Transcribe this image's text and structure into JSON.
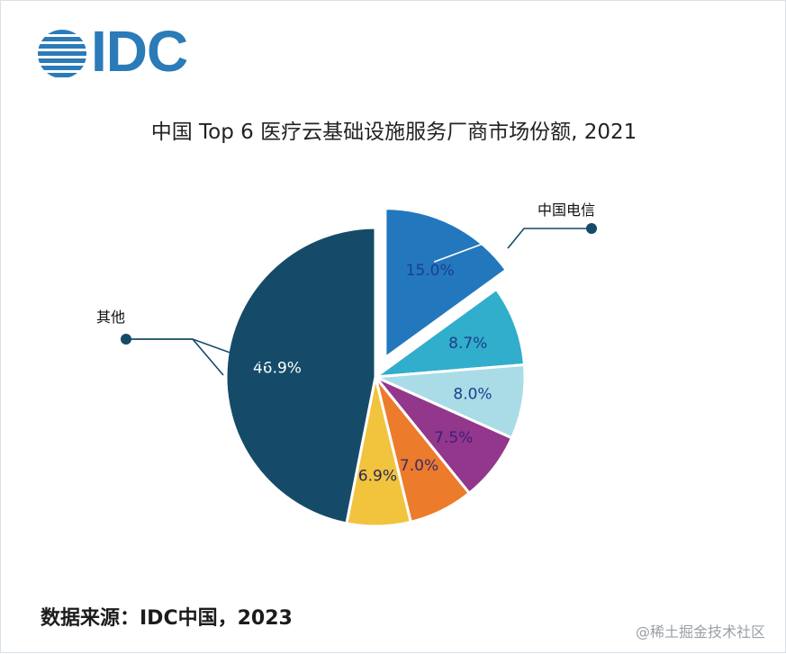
{
  "logo": {
    "text": "IDC",
    "color": "#2b7bb8"
  },
  "chart_data": {
    "type": "pie",
    "title": "中国 Top 6 医疗云基础设施服务厂商市场份额, 2021",
    "slices": [
      {
        "label": "中国电信",
        "value": 15.0,
        "value_label": "15.0%",
        "color": "#2377bd",
        "label_color": "#1a3f8f",
        "exploded": true
      },
      {
        "label": "",
        "value": 8.7,
        "value_label": "8.7%",
        "color": "#31aecb",
        "label_color": "#1a3f8f",
        "exploded": false
      },
      {
        "label": "",
        "value": 8.0,
        "value_label": "8.0%",
        "color": "#a9dce6",
        "label_color": "#1a3f8f",
        "exploded": false
      },
      {
        "label": "",
        "value": 7.5,
        "value_label": "7.5%",
        "color": "#93378c",
        "label_color": "#3a1f7a",
        "exploded": false
      },
      {
        "label": "",
        "value": 7.0,
        "value_label": "7.0%",
        "color": "#ec7b2c",
        "label_color": "#3a2a70",
        "exploded": false
      },
      {
        "label": "",
        "value": 6.9,
        "value_label": "6.9%",
        "color": "#f2c33c",
        "label_color": "#2a2a5a",
        "exploded": false
      },
      {
        "label": "其他",
        "value": 46.9,
        "value_label": "46.9%",
        "color": "#154b69",
        "label_color": "#ffffff",
        "exploded": false
      }
    ],
    "callout_color": "#154b69"
  },
  "footer": {
    "source": "数据来源：IDC中国，2023",
    "watermark": "@稀土掘金技术社区"
  }
}
